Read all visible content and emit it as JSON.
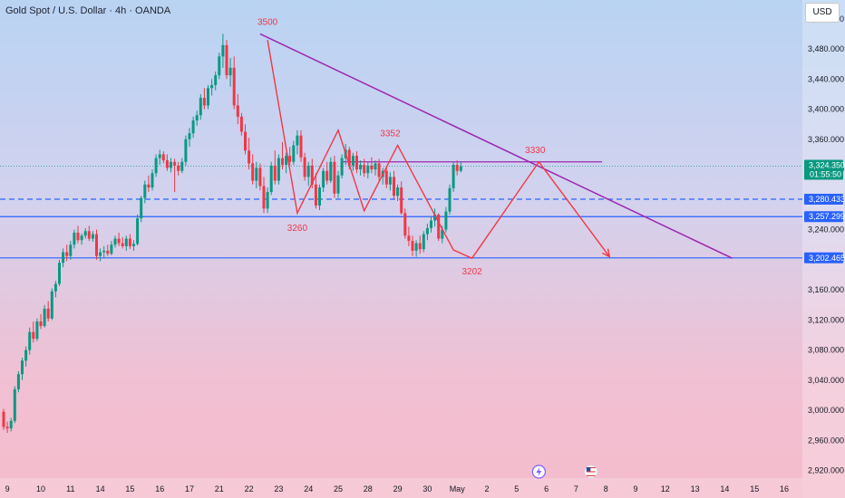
{
  "header": {
    "title": "Gold Spot / U.S. Dollar · 4h · OANDA",
    "currency_button": "USD"
  },
  "chart_data": {
    "type": "candlestick",
    "symbol": "Gold Spot / U.S. Dollar",
    "interval": "4h",
    "source": "OANDA",
    "ylim": [
      2910,
      3545
    ],
    "y_ticks": [
      2920,
      2960,
      3000,
      3040,
      3080,
      3120,
      3160,
      3200,
      3240,
      3280,
      3320,
      3360,
      3400,
      3440,
      3480,
      3520
    ],
    "x_ticks": [
      {
        "label": "9",
        "i": 1
      },
      {
        "label": "10",
        "i": 10
      },
      {
        "label": "11",
        "i": 18
      },
      {
        "label": "14",
        "i": 26
      },
      {
        "label": "15",
        "i": 34
      },
      {
        "label": "16",
        "i": 42
      },
      {
        "label": "17",
        "i": 50
      },
      {
        "label": "21",
        "i": 58
      },
      {
        "label": "22",
        "i": 66
      },
      {
        "label": "23",
        "i": 74
      },
      {
        "label": "24",
        "i": 82
      },
      {
        "label": "25",
        "i": 90
      },
      {
        "label": "28",
        "i": 98
      },
      {
        "label": "29",
        "i": 106
      },
      {
        "label": "30",
        "i": 114
      },
      {
        "label": "May",
        "i": 122
      },
      {
        "label": "2",
        "i": 130
      },
      {
        "label": "5",
        "i": 138
      },
      {
        "label": "6",
        "i": 146
      },
      {
        "label": "7",
        "i": 154
      },
      {
        "label": "8",
        "i": 162
      },
      {
        "label": "9",
        "i": 170
      },
      {
        "label": "12",
        "i": 178
      },
      {
        "label": "13",
        "i": 186
      },
      {
        "label": "14",
        "i": 194
      },
      {
        "label": "15",
        "i": 202
      },
      {
        "label": "16",
        "i": 210
      }
    ],
    "price_tags": [
      {
        "label": "3,324.350",
        "sublabel": "01:55:50",
        "value": 3324.35,
        "color": "#089981"
      },
      {
        "label": "3,280.433",
        "value": 3280.43,
        "color": "#2962ff"
      },
      {
        "label": "3,257.299",
        "value": 3257.3,
        "color": "#2962ff"
      },
      {
        "label": "3,202.465",
        "value": 3202.47,
        "color": "#2962ff"
      }
    ],
    "levels": [
      {
        "value": 3280.43,
        "style": "dashed",
        "color": "#2962ff"
      },
      {
        "value": 3257.3,
        "style": "solid",
        "color": "#2962ff"
      },
      {
        "value": 3202.47,
        "style": "solid",
        "color": "#2962ff"
      },
      {
        "value": 3324.35,
        "style": "dotted",
        "color": "#089981"
      }
    ],
    "annotations": [
      {
        "text": "3500",
        "i": 71,
        "value": 3500
      },
      {
        "text": "3260",
        "i": 79,
        "value": 3260
      },
      {
        "text": "3352",
        "i": 104,
        "value": 3352
      },
      {
        "text": "3202",
        "i": 126,
        "value": 3202
      },
      {
        "text": "3330",
        "i": 143,
        "value": 3330
      }
    ],
    "trendline": {
      "from": {
        "i": 69,
        "value": 3500
      },
      "to": {
        "i": 196,
        "value": 3202
      },
      "color": "#9c27b0"
    },
    "resistance_segment": {
      "from": {
        "i": 91,
        "value": 3330
      },
      "to": {
        "i": 161,
        "value": 3330
      },
      "color": "#9c27b0"
    },
    "zigzag": {
      "color": "#f23645",
      "points": [
        [
          71,
          3492
        ],
        [
          79,
          3262
        ],
        [
          90,
          3372
        ],
        [
          97,
          3265
        ],
        [
          106,
          3352
        ],
        [
          121,
          3213
        ],
        [
          126,
          3202
        ],
        [
          144,
          3330
        ],
        [
          163,
          3204
        ]
      ]
    },
    "candles": [
      {
        "o": 2998,
        "h": 3002,
        "l": 2974,
        "c": 2978
      },
      {
        "o": 2978,
        "h": 2985,
        "l": 2970,
        "c": 2976
      },
      {
        "o": 2976,
        "h": 2990,
        "l": 2972,
        "c": 2986
      },
      {
        "o": 2986,
        "h": 3032,
        "l": 2983,
        "c": 3028
      },
      {
        "o": 3028,
        "h": 3052,
        "l": 3024,
        "c": 3048
      },
      {
        "o": 3048,
        "h": 3070,
        "l": 3040,
        "c": 3066
      },
      {
        "o": 3066,
        "h": 3085,
        "l": 3058,
        "c": 3080
      },
      {
        "o": 3080,
        "h": 3110,
        "l": 3074,
        "c": 3104
      },
      {
        "o": 3104,
        "h": 3118,
        "l": 3090,
        "c": 3095
      },
      {
        "o": 3095,
        "h": 3122,
        "l": 3092,
        "c": 3118
      },
      {
        "o": 3118,
        "h": 3128,
        "l": 3108,
        "c": 3112
      },
      {
        "o": 3112,
        "h": 3140,
        "l": 3110,
        "c": 3135
      },
      {
        "o": 3135,
        "h": 3145,
        "l": 3118,
        "c": 3122
      },
      {
        "o": 3122,
        "h": 3162,
        "l": 3120,
        "c": 3158
      },
      {
        "o": 3158,
        "h": 3172,
        "l": 3150,
        "c": 3168
      },
      {
        "o": 3168,
        "h": 3200,
        "l": 3165,
        "c": 3196
      },
      {
        "o": 3196,
        "h": 3215,
        "l": 3190,
        "c": 3210
      },
      {
        "o": 3210,
        "h": 3220,
        "l": 3198,
        "c": 3205
      },
      {
        "o": 3205,
        "h": 3225,
        "l": 3200,
        "c": 3220
      },
      {
        "o": 3220,
        "h": 3240,
        "l": 3215,
        "c": 3236
      },
      {
        "o": 3236,
        "h": 3245,
        "l": 3222,
        "c": 3226
      },
      {
        "o": 3226,
        "h": 3235,
        "l": 3220,
        "c": 3232
      },
      {
        "o": 3232,
        "h": 3242,
        "l": 3228,
        "c": 3238
      },
      {
        "o": 3238,
        "h": 3245,
        "l": 3225,
        "c": 3228
      },
      {
        "o": 3228,
        "h": 3238,
        "l": 3224,
        "c": 3234
      },
      {
        "o": 3234,
        "h": 3240,
        "l": 3200,
        "c": 3205
      },
      {
        "o": 3205,
        "h": 3215,
        "l": 3198,
        "c": 3210
      },
      {
        "o": 3210,
        "h": 3218,
        "l": 3203,
        "c": 3212
      },
      {
        "o": 3212,
        "h": 3220,
        "l": 3205,
        "c": 3208
      },
      {
        "o": 3208,
        "h": 3225,
        "l": 3206,
        "c": 3220
      },
      {
        "o": 3220,
        "h": 3232,
        "l": 3216,
        "c": 3228
      },
      {
        "o": 3228,
        "h": 3236,
        "l": 3218,
        "c": 3222
      },
      {
        "o": 3222,
        "h": 3230,
        "l": 3215,
        "c": 3218
      },
      {
        "o": 3218,
        "h": 3232,
        "l": 3212,
        "c": 3228
      },
      {
        "o": 3228,
        "h": 3234,
        "l": 3214,
        "c": 3218
      },
      {
        "o": 3218,
        "h": 3226,
        "l": 3212,
        "c": 3221
      },
      {
        "o": 3221,
        "h": 3260,
        "l": 3219,
        "c": 3255
      },
      {
        "o": 3255,
        "h": 3285,
        "l": 3250,
        "c": 3282
      },
      {
        "o": 3282,
        "h": 3305,
        "l": 3275,
        "c": 3300
      },
      {
        "o": 3300,
        "h": 3312,
        "l": 3290,
        "c": 3296
      },
      {
        "o": 3296,
        "h": 3320,
        "l": 3292,
        "c": 3315
      },
      {
        "o": 3315,
        "h": 3340,
        "l": 3310,
        "c": 3335
      },
      {
        "o": 3335,
        "h": 3346,
        "l": 3326,
        "c": 3340
      },
      {
        "o": 3340,
        "h": 3344,
        "l": 3328,
        "c": 3332
      },
      {
        "o": 3332,
        "h": 3340,
        "l": 3318,
        "c": 3322
      },
      {
        "o": 3322,
        "h": 3335,
        "l": 3316,
        "c": 3330
      },
      {
        "o": 3330,
        "h": 3334,
        "l": 3290,
        "c": 3325
      },
      {
        "o": 3325,
        "h": 3330,
        "l": 3312,
        "c": 3318
      },
      {
        "o": 3318,
        "h": 3335,
        "l": 3315,
        "c": 3330
      },
      {
        "o": 3330,
        "h": 3365,
        "l": 3325,
        "c": 3360
      },
      {
        "o": 3360,
        "h": 3375,
        "l": 3350,
        "c": 3368
      },
      {
        "o": 3368,
        "h": 3390,
        "l": 3362,
        "c": 3385
      },
      {
        "o": 3385,
        "h": 3398,
        "l": 3378,
        "c": 3392
      },
      {
        "o": 3392,
        "h": 3420,
        "l": 3386,
        "c": 3415
      },
      {
        "o": 3415,
        "h": 3428,
        "l": 3400,
        "c": 3405
      },
      {
        "o": 3405,
        "h": 3432,
        "l": 3400,
        "c": 3428
      },
      {
        "o": 3428,
        "h": 3440,
        "l": 3418,
        "c": 3432
      },
      {
        "o": 3432,
        "h": 3450,
        "l": 3425,
        "c": 3445
      },
      {
        "o": 3445,
        "h": 3475,
        "l": 3440,
        "c": 3470
      },
      {
        "o": 3470,
        "h": 3500,
        "l": 3455,
        "c": 3485
      },
      {
        "o": 3485,
        "h": 3492,
        "l": 3440,
        "c": 3445
      },
      {
        "o": 3445,
        "h": 3468,
        "l": 3430,
        "c": 3455
      },
      {
        "o": 3455,
        "h": 3470,
        "l": 3400,
        "c": 3405
      },
      {
        "o": 3405,
        "h": 3420,
        "l": 3380,
        "c": 3390
      },
      {
        "o": 3390,
        "h": 3395,
        "l": 3365,
        "c": 3370
      },
      {
        "o": 3370,
        "h": 3380,
        "l": 3340,
        "c": 3345
      },
      {
        "o": 3345,
        "h": 3362,
        "l": 3320,
        "c": 3328
      },
      {
        "o": 3328,
        "h": 3340,
        "l": 3300,
        "c": 3305
      },
      {
        "o": 3305,
        "h": 3330,
        "l": 3295,
        "c": 3322
      },
      {
        "o": 3322,
        "h": 3328,
        "l": 3292,
        "c": 3298
      },
      {
        "o": 3298,
        "h": 3310,
        "l": 3262,
        "c": 3268
      },
      {
        "o": 3268,
        "h": 3296,
        "l": 3262,
        "c": 3290
      },
      {
        "o": 3290,
        "h": 3330,
        "l": 3286,
        "c": 3325
      },
      {
        "o": 3325,
        "h": 3345,
        "l": 3300,
        "c": 3305
      },
      {
        "o": 3305,
        "h": 3340,
        "l": 3300,
        "c": 3335
      },
      {
        "o": 3335,
        "h": 3356,
        "l": 3320,
        "c": 3326
      },
      {
        "o": 3326,
        "h": 3342,
        "l": 3315,
        "c": 3338
      },
      {
        "o": 3338,
        "h": 3350,
        "l": 3325,
        "c": 3330
      },
      {
        "o": 3330,
        "h": 3358,
        "l": 3326,
        "c": 3352
      },
      {
        "o": 3352,
        "h": 3372,
        "l": 3340,
        "c": 3365
      },
      {
        "o": 3365,
        "h": 3372,
        "l": 3330,
        "c": 3336
      },
      {
        "o": 3336,
        "h": 3342,
        "l": 3305,
        "c": 3310
      },
      {
        "o": 3310,
        "h": 3330,
        "l": 3298,
        "c": 3325
      },
      {
        "o": 3325,
        "h": 3334,
        "l": 3295,
        "c": 3300
      },
      {
        "o": 3300,
        "h": 3315,
        "l": 3268,
        "c": 3272
      },
      {
        "o": 3272,
        "h": 3300,
        "l": 3266,
        "c": 3296
      },
      {
        "o": 3296,
        "h": 3322,
        "l": 3290,
        "c": 3318
      },
      {
        "o": 3318,
        "h": 3330,
        "l": 3300,
        "c": 3305
      },
      {
        "o": 3305,
        "h": 3336,
        "l": 3302,
        "c": 3330
      },
      {
        "o": 3330,
        "h": 3338,
        "l": 3282,
        "c": 3288
      },
      {
        "o": 3288,
        "h": 3318,
        "l": 3282,
        "c": 3312
      },
      {
        "o": 3312,
        "h": 3340,
        "l": 3308,
        "c": 3335
      },
      {
        "o": 3335,
        "h": 3354,
        "l": 3326,
        "c": 3346
      },
      {
        "o": 3346,
        "h": 3350,
        "l": 3320,
        "c": 3325
      },
      {
        "o": 3325,
        "h": 3342,
        "l": 3318,
        "c": 3338
      },
      {
        "o": 3338,
        "h": 3344,
        "l": 3315,
        "c": 3320
      },
      {
        "o": 3320,
        "h": 3332,
        "l": 3312,
        "c": 3326
      },
      {
        "o": 3326,
        "h": 3334,
        "l": 3310,
        "c": 3315
      },
      {
        "o": 3315,
        "h": 3330,
        "l": 3308,
        "c": 3325
      },
      {
        "o": 3325,
        "h": 3336,
        "l": 3315,
        "c": 3320
      },
      {
        "o": 3320,
        "h": 3332,
        "l": 3312,
        "c": 3328
      },
      {
        "o": 3328,
        "h": 3334,
        "l": 3305,
        "c": 3310
      },
      {
        "o": 3310,
        "h": 3322,
        "l": 3300,
        "c": 3318
      },
      {
        "o": 3318,
        "h": 3324,
        "l": 3295,
        "c": 3300
      },
      {
        "o": 3300,
        "h": 3316,
        "l": 3292,
        "c": 3310
      },
      {
        "o": 3310,
        "h": 3318,
        "l": 3280,
        "c": 3285
      },
      {
        "o": 3285,
        "h": 3300,
        "l": 3278,
        "c": 3296
      },
      {
        "o": 3296,
        "h": 3304,
        "l": 3260,
        "c": 3262
      },
      {
        "o": 3262,
        "h": 3268,
        "l": 3228,
        "c": 3232
      },
      {
        "o": 3232,
        "h": 3244,
        "l": 3218,
        "c": 3225
      },
      {
        "o": 3225,
        "h": 3232,
        "l": 3205,
        "c": 3212
      },
      {
        "o": 3212,
        "h": 3226,
        "l": 3204,
        "c": 3222
      },
      {
        "o": 3222,
        "h": 3232,
        "l": 3208,
        "c": 3214
      },
      {
        "o": 3214,
        "h": 3238,
        "l": 3210,
        "c": 3234
      },
      {
        "o": 3234,
        "h": 3248,
        "l": 3226,
        "c": 3242
      },
      {
        "o": 3242,
        "h": 3258,
        "l": 3236,
        "c": 3252
      },
      {
        "o": 3252,
        "h": 3268,
        "l": 3244,
        "c": 3260
      },
      {
        "o": 3260,
        "h": 3262,
        "l": 3225,
        "c": 3228
      },
      {
        "o": 3228,
        "h": 3245,
        "l": 3222,
        "c": 3240
      },
      {
        "o": 3240,
        "h": 3270,
        "l": 3236,
        "c": 3264
      },
      {
        "o": 3264,
        "h": 3300,
        "l": 3260,
        "c": 3295
      },
      {
        "o": 3295,
        "h": 3330,
        "l": 3290,
        "c": 3326
      },
      {
        "o": 3326,
        "h": 3332,
        "l": 3312,
        "c": 3318
      },
      {
        "o": 3318,
        "h": 3330,
        "l": 3316,
        "c": 3324
      }
    ]
  },
  "event_icons": [
    {
      "name": "lightning-event-icon",
      "i": 144
    },
    {
      "name": "us-flag-event-icon",
      "i": 158
    }
  ]
}
